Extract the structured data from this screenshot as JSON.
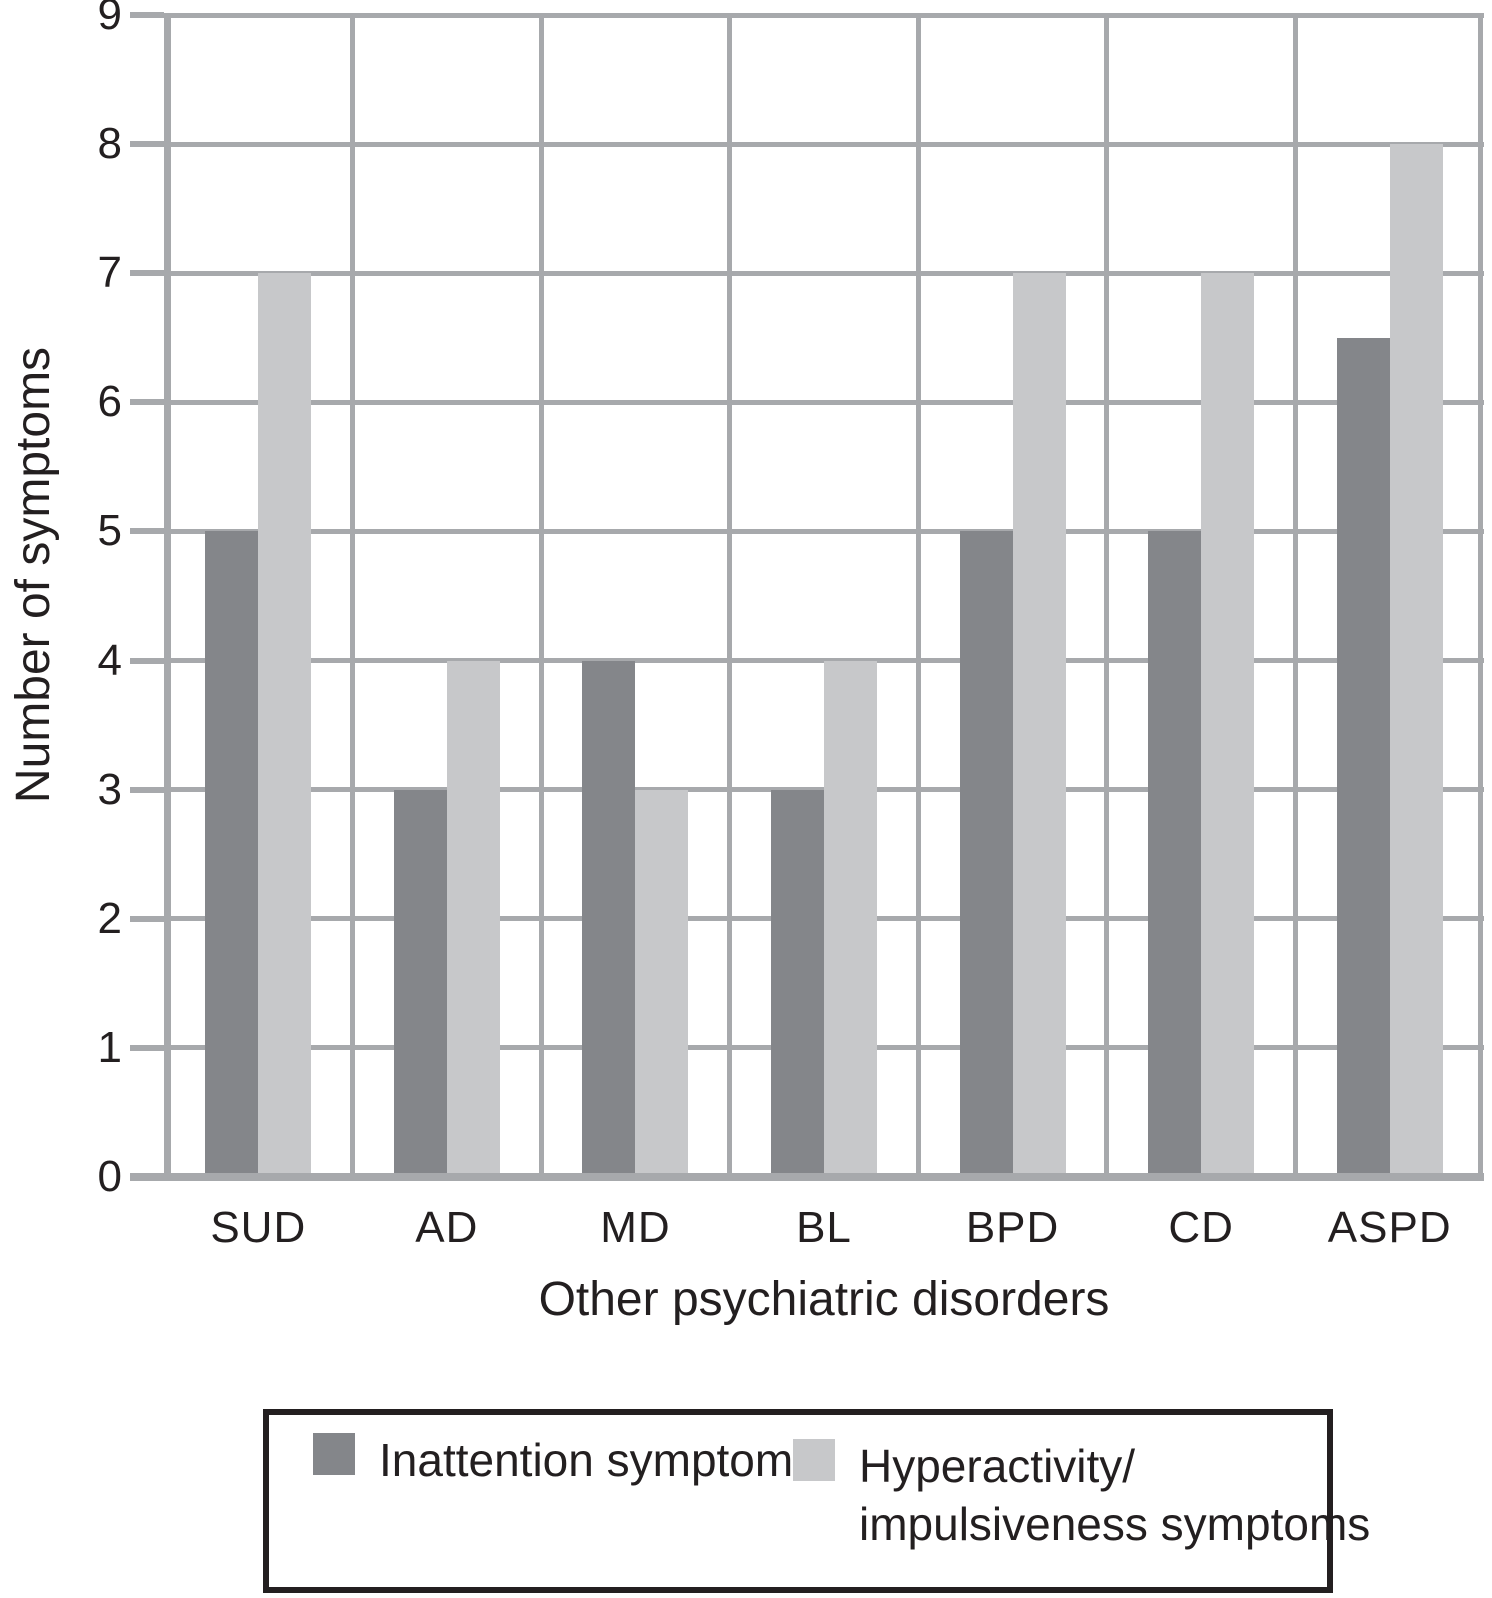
{
  "figure": {
    "background": "#ffffff",
    "text_color": "#231f20"
  },
  "chart_data": {
    "type": "bar",
    "title": "",
    "categories": [
      "SUD",
      "AD",
      "MD",
      "BL",
      "BPD",
      "CD",
      "ASPD"
    ],
    "series": [
      {
        "name": "Inattention symptoms",
        "legend_lines": [
          "Inattention symptoms"
        ],
        "color": "#84868a",
        "values": [
          5,
          3,
          4,
          3,
          5,
          5,
          6.5
        ]
      },
      {
        "name": "Hyperactivity/impulsiveness symptoms",
        "legend_lines": [
          "Hyperactivity/",
          "impulsiveness symptoms"
        ],
        "color": "#c7c8ca",
        "values": [
          7,
          4,
          3,
          4,
          7,
          7,
          8
        ]
      }
    ],
    "xlabel": "Other psychiatric disorders",
    "ylabel": "Number of symptoms",
    "ylim": [
      0,
      9
    ],
    "yticks": [
      0,
      1,
      2,
      3,
      4,
      5,
      6,
      7,
      8,
      9
    ],
    "grid": {
      "horizontal": true,
      "vertical": true,
      "color": "#a7a9ac"
    },
    "legend_position": "bottom",
    "legend_border_color": "#231f20"
  }
}
